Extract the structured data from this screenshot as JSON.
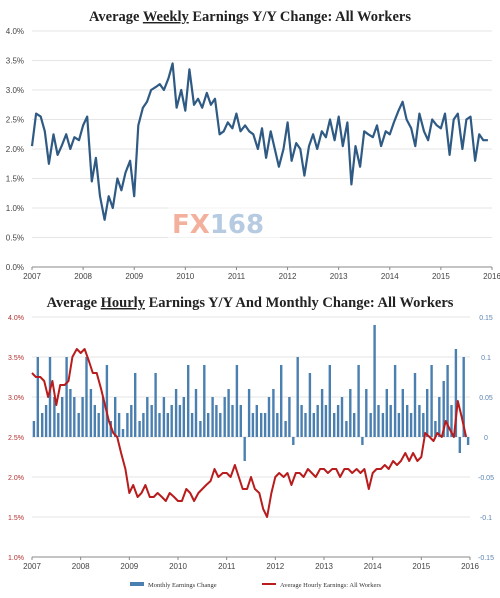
{
  "watermark": {
    "prefix": "FX",
    "number": "168"
  },
  "chart_data": [
    {
      "type": "line",
      "title_parts": [
        "Average ",
        "Weekly",
        " Earnings Y/Y Change: All Workers"
      ],
      "ylim": [
        0,
        4
      ],
      "yticks": [
        "0.0%",
        "0.5%",
        "1.0%",
        "1.5%",
        "2.0%",
        "2.5%",
        "3.0%",
        "3.5%",
        "4.0%"
      ],
      "xlim": [
        2007,
        2016
      ],
      "xticks": [
        "2007",
        "2008",
        "2009",
        "2010",
        "2011",
        "2012",
        "2013",
        "2014",
        "2015",
        "2016"
      ],
      "color": "#2f5a84",
      "series": [
        {
          "x": [
            2007.0,
            2007.08,
            2007.17,
            2007.25,
            2007.33,
            2007.42,
            2007.5,
            2007.58,
            2007.67,
            2007.75,
            2007.83,
            2007.92,
            2008.0,
            2008.08,
            2008.17,
            2008.25,
            2008.33,
            2008.42,
            2008.5,
            2008.58,
            2008.67,
            2008.75,
            2008.83,
            2008.92,
            2009.0,
            2009.08,
            2009.17,
            2009.25,
            2009.33,
            2009.42,
            2009.5,
            2009.58,
            2009.67,
            2009.75,
            2009.83,
            2009.92,
            2010.0,
            2010.08,
            2010.17,
            2010.25,
            2010.33,
            2010.42,
            2010.5,
            2010.58,
            2010.67,
            2010.75,
            2010.83,
            2010.92,
            2011.0,
            2011.08,
            2011.17,
            2011.25,
            2011.33,
            2011.42,
            2011.5,
            2011.58,
            2011.67,
            2011.75,
            2011.83,
            2011.92,
            2012.0,
            2012.08,
            2012.17,
            2012.25,
            2012.33,
            2012.42,
            2012.5,
            2012.58,
            2012.67,
            2012.75,
            2012.83,
            2012.92,
            2013.0,
            2013.08,
            2013.17,
            2013.25,
            2013.33,
            2013.42,
            2013.5,
            2013.58,
            2013.67,
            2013.75,
            2013.83,
            2013.92,
            2014.0,
            2014.08,
            2014.17,
            2014.25,
            2014.33,
            2014.42,
            2014.5,
            2014.58,
            2014.67,
            2014.75,
            2014.83,
            2014.92,
            2015.0,
            2015.08,
            2015.17,
            2015.25,
            2015.33,
            2015.42,
            2015.5,
            2015.58,
            2015.67,
            2015.75,
            2015.83,
            2015.92
          ],
          "y": [
            2.05,
            2.6,
            2.55,
            2.3,
            1.75,
            2.25,
            1.9,
            2.05,
            2.25,
            2.0,
            2.2,
            2.15,
            2.4,
            2.55,
            1.45,
            1.85,
            1.2,
            0.8,
            1.2,
            1.0,
            1.5,
            1.3,
            1.6,
            1.8,
            1.2,
            2.4,
            2.7,
            2.8,
            3.0,
            3.05,
            3.1,
            3.0,
            3.2,
            3.45,
            2.7,
            3.0,
            2.65,
            3.35,
            2.75,
            2.85,
            2.7,
            2.95,
            2.75,
            2.85,
            2.25,
            2.3,
            2.45,
            2.35,
            2.6,
            2.3,
            2.4,
            2.3,
            2.25,
            2.0,
            2.35,
            1.85,
            2.3,
            2.0,
            1.7,
            2.0,
            2.45,
            1.8,
            2.1,
            2.0,
            1.55,
            2.05,
            2.25,
            2.0,
            2.3,
            2.2,
            2.5,
            2.15,
            2.55,
            2.05,
            2.45,
            1.4,
            2.05,
            1.7,
            2.3,
            2.25,
            2.2,
            2.4,
            2.05,
            2.3,
            2.25,
            2.45,
            2.65,
            2.8,
            2.5,
            2.35,
            2.05,
            2.6,
            2.3,
            2.15,
            2.5,
            2.4,
            2.35,
            2.6,
            1.9,
            2.5,
            2.6,
            2.0,
            2.5,
            2.55,
            1.8,
            2.25,
            2.15,
            2.15
          ]
        }
      ]
    },
    {
      "type": "bar+line",
      "title_parts": [
        "Average ",
        "Hourly",
        " Earnings Y/Y And Monthly Change: All Workers"
      ],
      "xlim": [
        2007,
        2016
      ],
      "xticks": [
        "2007",
        "2008",
        "2009",
        "2010",
        "2011",
        "2012",
        "2013",
        "2014",
        "2015",
        "2016"
      ],
      "left_axis": {
        "ylim": [
          1.0,
          4.0
        ],
        "ticks": [
          "1.0%",
          "1.5%",
          "2.0%",
          "2.5%",
          "3.0%",
          "3.5%",
          "4.0%"
        ]
      },
      "right_axis": {
        "ylim": [
          -0.15,
          0.15
        ],
        "ticks": [
          "-0.15",
          "-0.1",
          "-0.05",
          "0",
          "0.05",
          "0.1",
          "0.15"
        ]
      },
      "series": [
        {
          "name": "Monthly Earnings Change",
          "type": "bar",
          "axis": "right",
          "color": "#4a7fb0",
          "x": [
            2007.04,
            2007.12,
            2007.21,
            2007.29,
            2007.37,
            2007.46,
            2007.54,
            2007.62,
            2007.71,
            2007.79,
            2007.87,
            2007.96,
            2008.04,
            2008.12,
            2008.21,
            2008.29,
            2008.37,
            2008.46,
            2008.54,
            2008.62,
            2008.71,
            2008.79,
            2008.87,
            2008.96,
            2009.04,
            2009.12,
            2009.21,
            2009.29,
            2009.37,
            2009.46,
            2009.54,
            2009.62,
            2009.71,
            2009.79,
            2009.87,
            2009.96,
            2010.04,
            2010.12,
            2010.21,
            2010.29,
            2010.37,
            2010.46,
            2010.54,
            2010.62,
            2010.71,
            2010.79,
            2010.87,
            2010.96,
            2011.04,
            2011.12,
            2011.21,
            2011.29,
            2011.37,
            2011.46,
            2011.54,
            2011.62,
            2011.71,
            2011.79,
            2011.87,
            2011.96,
            2012.04,
            2012.12,
            2012.21,
            2012.29,
            2012.37,
            2012.46,
            2012.54,
            2012.62,
            2012.71,
            2012.79,
            2012.87,
            2012.96,
            2013.04,
            2013.12,
            2013.21,
            2013.29,
            2013.37,
            2013.46,
            2013.54,
            2013.62,
            2013.71,
            2013.79,
            2013.87,
            2013.96,
            2014.04,
            2014.12,
            2014.21,
            2014.29,
            2014.37,
            2014.46,
            2014.54,
            2014.62,
            2014.71,
            2014.79,
            2014.87,
            2014.96,
            2015.04,
            2015.12,
            2015.21,
            2015.29,
            2015.37,
            2015.46,
            2015.54,
            2015.62,
            2015.71,
            2015.79,
            2015.87,
            2015.96
          ],
          "values": [
            0.02,
            0.1,
            0.03,
            0.04,
            0.1,
            0.05,
            0.03,
            0.05,
            0.1,
            0.06,
            0.05,
            0.03,
            0.05,
            0.1,
            0.06,
            0.04,
            0.03,
            0.05,
            0.09,
            0.02,
            0.05,
            0.03,
            0.01,
            0.03,
            0.04,
            0.08,
            0.02,
            0.03,
            0.05,
            0.04,
            0.08,
            0.03,
            0.05,
            0.03,
            0.04,
            0.06,
            0.04,
            0.05,
            0.09,
            0.03,
            0.06,
            0.02,
            0.09,
            0.03,
            0.05,
            0.04,
            0.03,
            0.05,
            0.06,
            0.04,
            0.09,
            0.04,
            -0.03,
            0.06,
            0.03,
            0.04,
            0.03,
            0.03,
            0.05,
            0.06,
            0.03,
            0.09,
            0.02,
            0.05,
            -0.01,
            0.1,
            0.04,
            0.03,
            0.08,
            0.03,
            0.04,
            0.06,
            0.04,
            0.09,
            0.03,
            0.04,
            0.05,
            0.02,
            0.06,
            0.03,
            0.09,
            -0.01,
            0.06,
            0.03,
            0.14,
            0.04,
            0.03,
            0.06,
            0.04,
            0.09,
            0.03,
            0.06,
            0.04,
            0.03,
            0.08,
            0.04,
            0.03,
            0.06,
            0.09,
            0.02,
            0.05,
            0.07,
            0.09,
            0.04,
            0.11,
            -0.02,
            0.1,
            -0.01
          ]
        },
        {
          "name": "Average Hourly Earnings: All Workers",
          "type": "line",
          "axis": "left",
          "color": "#b81c1c",
          "x": [
            2007.0,
            2007.08,
            2007.17,
            2007.25,
            2007.33,
            2007.42,
            2007.5,
            2007.58,
            2007.67,
            2007.75,
            2007.83,
            2007.92,
            2008.0,
            2008.08,
            2008.17,
            2008.25,
            2008.33,
            2008.42,
            2008.5,
            2008.58,
            2008.67,
            2008.75,
            2008.83,
            2008.92,
            2009.0,
            2009.08,
            2009.17,
            2009.25,
            2009.33,
            2009.42,
            2009.5,
            2009.58,
            2009.67,
            2009.75,
            2009.83,
            2009.92,
            2010.0,
            2010.08,
            2010.17,
            2010.25,
            2010.33,
            2010.42,
            2010.5,
            2010.58,
            2010.67,
            2010.75,
            2010.83,
            2010.92,
            2011.0,
            2011.08,
            2011.17,
            2011.25,
            2011.33,
            2011.42,
            2011.5,
            2011.58,
            2011.67,
            2011.75,
            2011.83,
            2011.92,
            2012.0,
            2012.08,
            2012.17,
            2012.25,
            2012.33,
            2012.42,
            2012.5,
            2012.58,
            2012.67,
            2012.75,
            2012.83,
            2012.92,
            2013.0,
            2013.08,
            2013.17,
            2013.25,
            2013.33,
            2013.42,
            2013.5,
            2013.58,
            2013.67,
            2013.75,
            2013.83,
            2013.92,
            2014.0,
            2014.08,
            2014.17,
            2014.25,
            2014.33,
            2014.42,
            2014.5,
            2014.58,
            2014.67,
            2014.75,
            2014.83,
            2014.92,
            2015.0,
            2015.08,
            2015.17,
            2015.25,
            2015.33,
            2015.42,
            2015.5,
            2015.58,
            2015.67,
            2015.75,
            2015.83,
            2015.92
          ],
          "y": [
            3.3,
            3.25,
            3.25,
            3.2,
            3.0,
            3.2,
            2.9,
            3.15,
            3.15,
            3.2,
            3.5,
            3.6,
            3.55,
            3.6,
            3.45,
            3.3,
            3.3,
            3.1,
            2.9,
            2.7,
            2.55,
            2.5,
            2.3,
            2.1,
            1.8,
            1.9,
            1.75,
            1.8,
            1.9,
            1.75,
            1.75,
            1.8,
            1.75,
            1.7,
            1.8,
            1.75,
            1.7,
            1.7,
            1.85,
            1.8,
            1.7,
            1.8,
            1.85,
            1.9,
            1.95,
            2.1,
            2.0,
            2.05,
            2.05,
            2.0,
            2.15,
            2.0,
            1.85,
            1.85,
            2.0,
            1.85,
            1.8,
            1.6,
            1.5,
            1.8,
            2.0,
            2.05,
            2.0,
            2.05,
            1.9,
            2.05,
            2.05,
            2.0,
            2.1,
            2.05,
            2.0,
            2.1,
            2.1,
            2.05,
            2.1,
            2.1,
            2.0,
            2.1,
            2.1,
            2.05,
            2.1,
            2.05,
            2.1,
            1.85,
            2.05,
            2.1,
            2.1,
            2.15,
            2.1,
            2.2,
            2.15,
            2.2,
            2.3,
            2.2,
            2.3,
            2.2,
            2.25,
            2.55,
            2.5,
            2.45,
            2.55,
            2.5,
            2.7,
            2.6,
            2.5,
            2.95,
            2.75,
            2.5
          ]
        }
      ],
      "legend": [
        "Monthly Earnings Change",
        "Average Hourly Earnings: All Workers"
      ]
    }
  ]
}
